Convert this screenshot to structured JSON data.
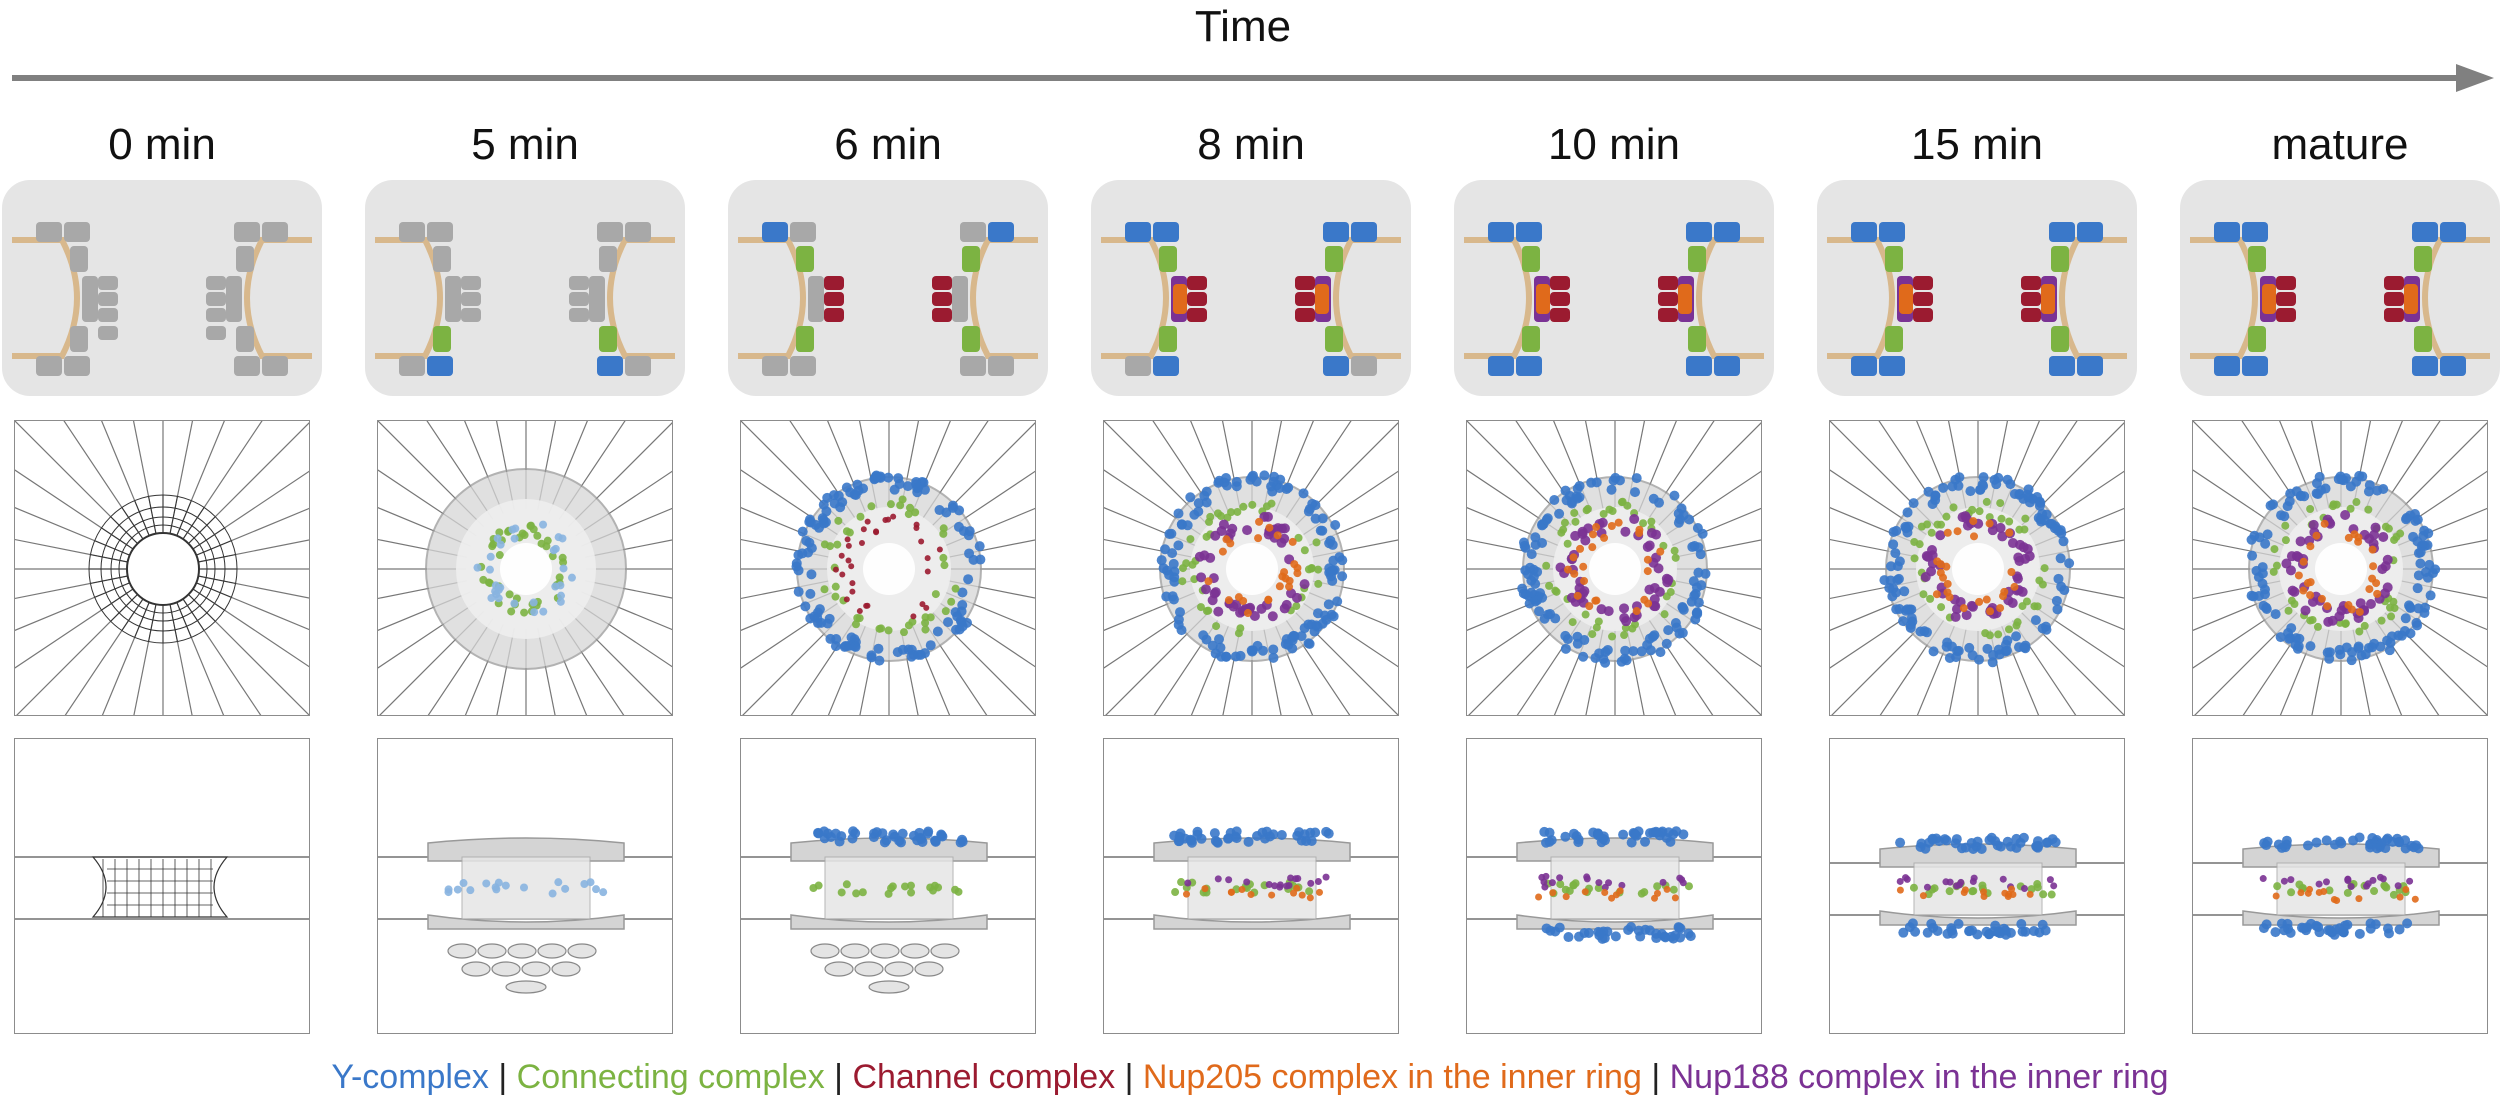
{
  "header": {
    "time_label": "Time"
  },
  "stages": [
    {
      "label": "0 min"
    },
    {
      "label": "5 min"
    },
    {
      "label": "6 min"
    },
    {
      "label": "8 min"
    },
    {
      "label": "10 min"
    },
    {
      "label": "15 min"
    },
    {
      "label": "mature"
    }
  ],
  "legend": {
    "separator": "|",
    "items": [
      {
        "label": "Y-complex",
        "color": "#3a78c9"
      },
      {
        "label": "Connecting complex",
        "color": "#7cb342"
      },
      {
        "label": "Channel complex",
        "color": "#9b1b30"
      },
      {
        "label": "Nup205 complex in the inner ring",
        "color": "#e06a1b"
      },
      {
        "label": "Nup188 complex in the inner ring",
        "color": "#7b3294"
      }
    ]
  },
  "colors": {
    "unassembled": "#a8a8a8",
    "membrane": "#d8b88c",
    "panel_background": "#e5e5e5",
    "axis_arrow": "#808080"
  }
}
